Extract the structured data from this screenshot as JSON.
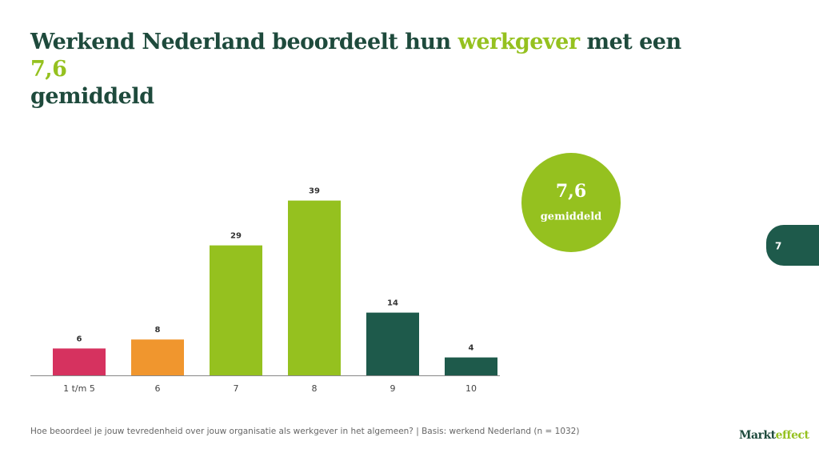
{
  "title": {
    "parts": [
      "Werkend Nederland beoordeelt hun ",
      "werkgever",
      " met een ",
      "7,6",
      " gemiddeld"
    ]
  },
  "chart_data": {
    "type": "bar",
    "categories": [
      "1 t/m 5",
      "6",
      "7",
      "8",
      "9",
      "10"
    ],
    "values": [
      6,
      8,
      29,
      39,
      14,
      4
    ],
    "colors": [
      "#d6325f",
      "#f0962e",
      "#95c11f",
      "#95c11f",
      "#1e5a4b",
      "#1e5a4b"
    ]
  },
  "badge": {
    "value": "7,6",
    "label": "gemiddeld"
  },
  "page_number": "7",
  "footnote": "Hoe beoordeel je jouw tevredenheid over jouw organisatie als werkgever in het algemeen? | Basis: werkend Nederland (n = 1032)",
  "logo": {
    "parts": [
      "Markt",
      "effect"
    ]
  }
}
